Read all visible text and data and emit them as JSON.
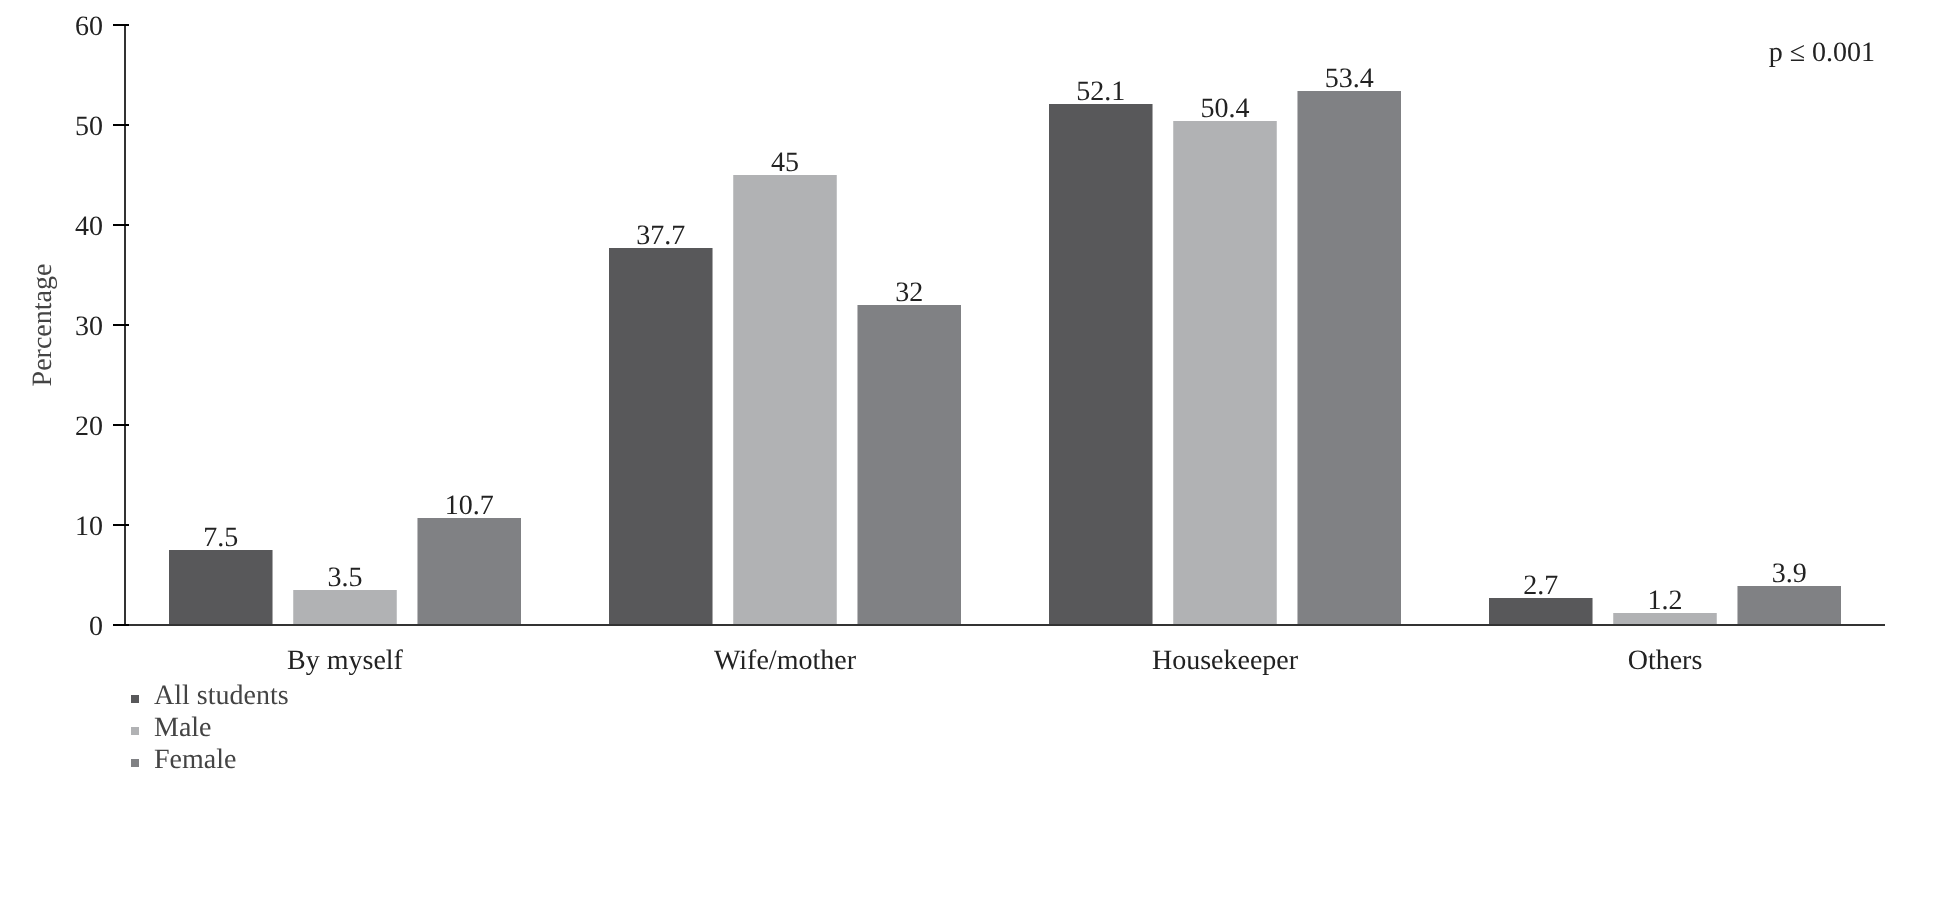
{
  "chart_data": {
    "type": "bar",
    "ylabel": "Percentage",
    "categories": [
      "By myself",
      "Wife/mother",
      "Housekeeper",
      "Others"
    ],
    "series": [
      {
        "name": "All students",
        "color": "#58585a",
        "values": [
          7.5,
          37.7,
          52.1,
          2.7
        ]
      },
      {
        "name": "Male",
        "color": "#b1b2b4",
        "values": [
          3.5,
          45,
          50.4,
          1.2
        ]
      },
      {
        "name": "Female",
        "color": "#808184",
        "values": [
          10.7,
          32,
          53.4,
          3.9
        ]
      }
    ],
    "ylim": [
      0,
      60
    ],
    "yticks": [
      0,
      10,
      20,
      30,
      40,
      50,
      60
    ],
    "grid": false,
    "legend": "bottom left",
    "data_labels": true,
    "annotations": [
      "p ≤ 0.001"
    ]
  }
}
